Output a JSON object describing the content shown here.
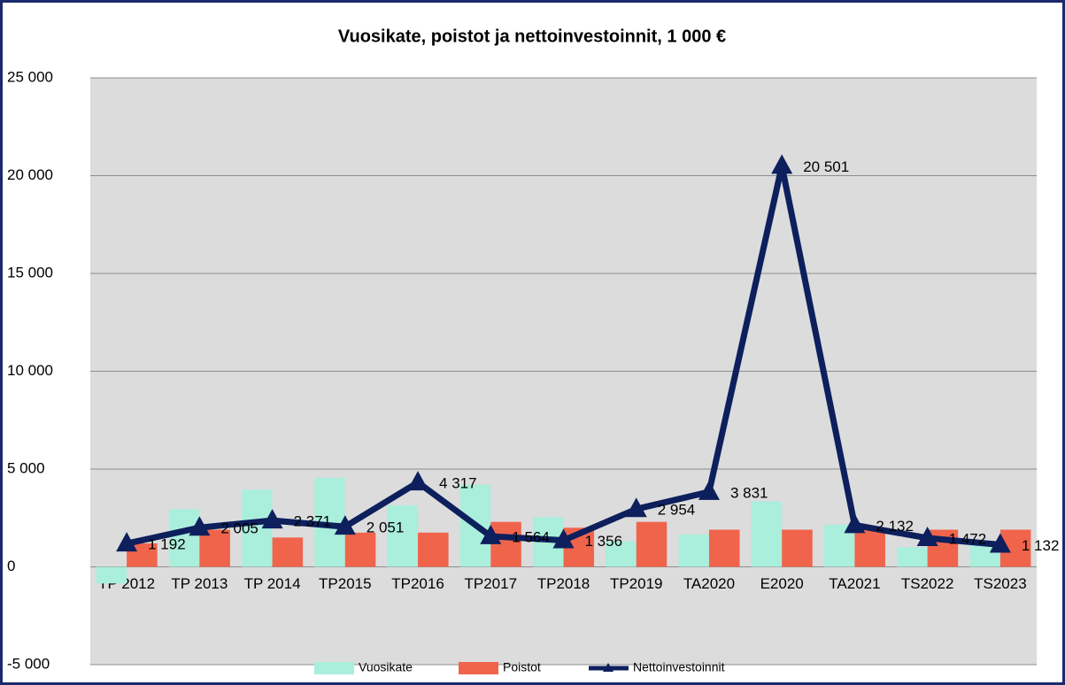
{
  "chart_data": {
    "type": "bar_line",
    "title": "Vuosikate, poistot ja nettoinvestoinnit, 1 000 €",
    "categories": [
      "TP 2012",
      "TP 2013",
      "TP 2014",
      "TP2015",
      "TP2016",
      "TP2017",
      "TP2018",
      "TP2019",
      "TA2020",
      "E2020",
      "TA2021",
      "TS2022",
      "TS2023"
    ],
    "series": [
      {
        "name": "Vuosikate",
        "type": "bar",
        "color": "#aaeedc",
        "values": [
          -850,
          2950,
          3950,
          4550,
          3150,
          4200,
          2550,
          1300,
          1650,
          3350,
          2150,
          1000,
          1200
        ]
      },
      {
        "name": "Poistot",
        "type": "bar",
        "color": "#f0644c",
        "values": [
          1200,
          1900,
          1500,
          1750,
          1750,
          2300,
          2000,
          2300,
          1900,
          1900,
          1900,
          1900,
          1900
        ]
      },
      {
        "name": "Nettoinvestoinnit",
        "type": "line",
        "color": "#0d1f5c",
        "values": [
          1192,
          2005,
          2371,
          2051,
          4317,
          1564,
          1356,
          2954,
          3831,
          20501,
          2132,
          1472,
          1132
        ],
        "value_labels": [
          "1 192",
          "2 005",
          "2 371",
          "2 051",
          "4 317",
          "1 564",
          "1 356",
          "2 954",
          "3 831",
          "20 501",
          "2 132",
          "1 472",
          "1 132"
        ]
      }
    ],
    "ylim": [
      -5000,
      25000
    ],
    "yticks": [
      {
        "value": -5000,
        "label": "-5 000"
      },
      0,
      {
        "value": 5000,
        "label": "5 000"
      },
      {
        "value": 10000,
        "label": "10 000"
      },
      {
        "value": 15000,
        "label": "15 000"
      },
      {
        "value": 20000,
        "label": "20 000"
      },
      {
        "value": 25000,
        "label": "25 000"
      }
    ],
    "grid": true,
    "legend": "bottom"
  }
}
